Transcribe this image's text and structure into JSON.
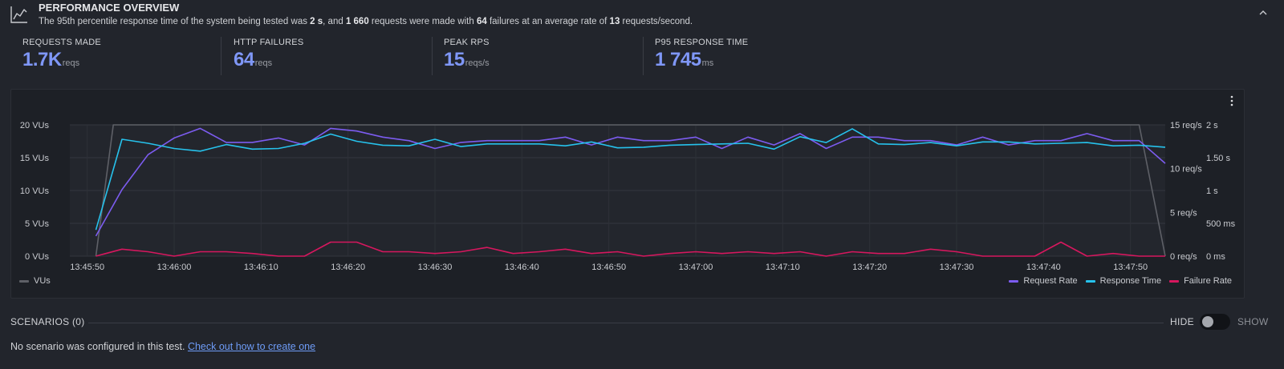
{
  "header": {
    "title": "PERFORMANCE OVERVIEW",
    "summary": {
      "p1": "The 95th percentile response time of the system being tested was ",
      "p95": "2 s",
      "p2": ", and ",
      "requests": "1 660",
      "p3": " requests were made with ",
      "failures": "64",
      "p4": " failures at an average rate of ",
      "rate": "13",
      "p5": " requests/second."
    },
    "icon": "line-chart-icon",
    "collapse_icon": "chevron-up-icon"
  },
  "stats": [
    {
      "label": "REQUESTS MADE",
      "value": "1.7K",
      "unit": "reqs"
    },
    {
      "label": "HTTP FAILURES",
      "value": "64",
      "unit": "reqs"
    },
    {
      "label": "PEAK RPS",
      "value": "15",
      "unit": "reqs/s"
    },
    {
      "label": "P95 RESPONSE TIME",
      "value": "1 745",
      "unit": "ms"
    }
  ],
  "colors": {
    "accent": "#7f97f7",
    "vus": "#5e6067",
    "request_rate": "#7c5cf0",
    "response_time": "#26c2ec",
    "failure_rate": "#d6175e"
  },
  "chart_data": {
    "type": "line",
    "x_tick_labels": [
      "13:45:50",
      "13:46:00",
      "13:46:10",
      "13:46:20",
      "13:46:30",
      "13:46:40",
      "13:46:50",
      "13:47:00",
      "13:47:10",
      "13:47:20",
      "13:47:30",
      "13:47:40",
      "13:47:50"
    ],
    "y_axis_vus": {
      "ticks": [
        "20 VUs",
        "15 VUs",
        "10 VUs",
        "5 VUs",
        "0 VUs"
      ],
      "range": [
        0,
        20
      ]
    },
    "y_axis_reqs": {
      "ticks": [
        "15 req/s",
        "10 req/s",
        "5 req/s",
        "0 req/s"
      ],
      "range": [
        0,
        15
      ]
    },
    "y_axis_time": {
      "ticks": [
        "2 s",
        "1.50 s",
        "1 s",
        "500 ms",
        "0 ms"
      ],
      "range": [
        0,
        2000
      ]
    },
    "series": [
      {
        "name": "VUs",
        "axis": "vus",
        "x": [
          "13:45:51",
          "13:45:53",
          "13:47:51",
          "13:47:54"
        ],
        "values": [
          0,
          20,
          20,
          0
        ]
      },
      {
        "name": "Request Rate",
        "axis": "reqs",
        "values": [
          2.3,
          7.6,
          11.6,
          13.5,
          14.6,
          13.0,
          13.0,
          13.5,
          12.7,
          14.6,
          14.3,
          13.6,
          13.2,
          12.3,
          13.0,
          13.2,
          13.2,
          13.2,
          13.6,
          12.7,
          13.6,
          13.2,
          13.2,
          13.6,
          12.3,
          13.6,
          12.7,
          14.0,
          12.3,
          13.6,
          13.6,
          13.2,
          13.2,
          12.7,
          13.6,
          12.7,
          13.2,
          13.2,
          14.0,
          13.2,
          13.2,
          10.6
        ]
      },
      {
        "name": "Response Time",
        "axis": "time",
        "values": [
          400,
          1780,
          1720,
          1640,
          1600,
          1700,
          1630,
          1640,
          1720,
          1860,
          1750,
          1690,
          1680,
          1780,
          1670,
          1710,
          1710,
          1710,
          1680,
          1740,
          1650,
          1660,
          1690,
          1700,
          1710,
          1720,
          1630,
          1820,
          1730,
          1940,
          1710,
          1700,
          1730,
          1680,
          1740,
          1740,
          1710,
          1720,
          1730,
          1680,
          1690,
          1660
        ]
      },
      {
        "name": "Failure Rate",
        "axis": "reqs",
        "values": [
          0,
          0.8,
          0.5,
          0,
          0.5,
          0.5,
          0.3,
          0,
          0,
          1.6,
          1.6,
          0.5,
          0.5,
          0.3,
          0.5,
          1.0,
          0.3,
          0.5,
          0.8,
          0.3,
          0.5,
          0,
          0.3,
          0.5,
          0.3,
          0.5,
          0.3,
          0.5,
          0,
          0.5,
          0.3,
          0.3,
          0.8,
          0.5,
          0,
          0,
          0,
          1.6,
          0,
          0.3,
          0,
          0
        ]
      }
    ],
    "legend": {
      "left": [
        "VUs"
      ],
      "right": [
        "Request Rate",
        "Response Time",
        "Failure Rate"
      ]
    },
    "grid": true,
    "legend_placement": "bottom"
  },
  "scenarios": {
    "title": "SCENARIOS (0)",
    "hide_label": "HIDE",
    "show_label": "SHOW",
    "empty_text": "No scenario was configured in this test.",
    "link_text": "Check out how to create one"
  }
}
